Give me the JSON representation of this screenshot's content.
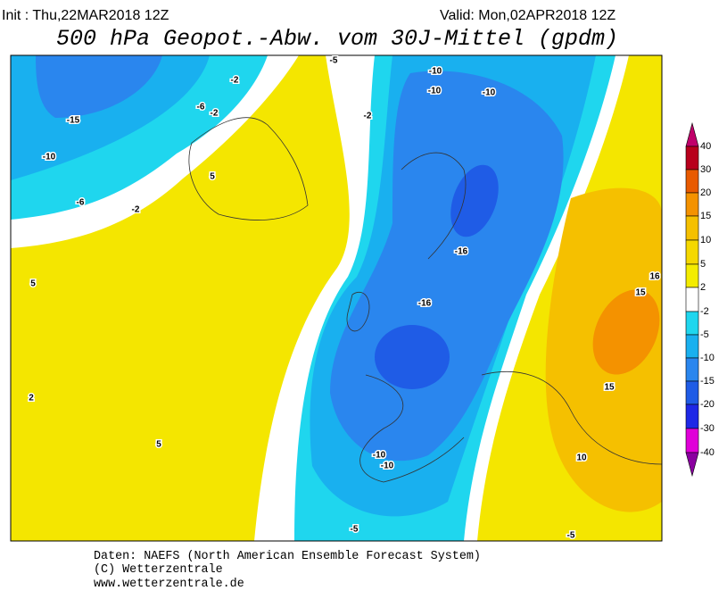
{
  "header": {
    "init": "Init : Thu,22MAR2018 12Z",
    "valid": "Valid: Mon,02APR2018 12Z",
    "title": "500 hPa Geopot.-Abw. vom 30J-Mittel (gpdm)"
  },
  "colorbar": {
    "labels": [
      40,
      30,
      20,
      15,
      10,
      5,
      2,
      -2,
      -5,
      -10,
      -15,
      -20,
      -30,
      -40
    ]
  },
  "map": {
    "contour_labels": [
      "-10",
      "-10",
      "-10",
      "-15",
      "-10",
      "-6",
      "-2",
      "-6",
      "-2",
      "-2",
      "5",
      "-2",
      "-16",
      "-16",
      "15",
      "16",
      "15",
      "-10",
      "-10",
      "10",
      "-5",
      "-5",
      "5",
      "2",
      "5",
      "-5"
    ]
  },
  "footer": {
    "lines": [
      "Daten: NAEFS (North American Ensemble Forecast System)",
      "(C) Wetterzentrale",
      "www.wetterzentrale.de"
    ]
  }
}
